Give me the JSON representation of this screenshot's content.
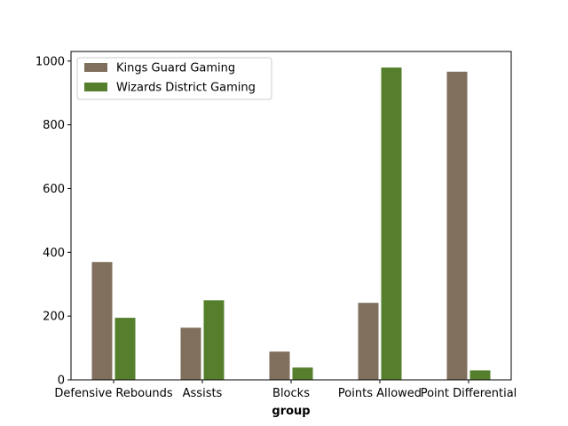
{
  "chart_data": {
    "type": "bar",
    "title": "",
    "xlabel": "group",
    "ylabel": "",
    "categories": [
      "Defensive Rebounds",
      "Assists",
      "Blocks",
      "Points Allowed",
      "Point Differential"
    ],
    "series": [
      {
        "name": "Kings Guard Gaming",
        "color": "#816f5e",
        "values": [
          371,
          165,
          90,
          243,
          968
        ]
      },
      {
        "name": "Wizards District Gaming",
        "color": "#557f2d",
        "values": [
          196,
          251,
          40,
          981,
          31
        ]
      }
    ],
    "ylim": [
      0,
      1030
    ],
    "yticks": [
      0,
      200,
      400,
      600,
      800,
      1000
    ],
    "legend_position": "top-left",
    "grid": false
  }
}
